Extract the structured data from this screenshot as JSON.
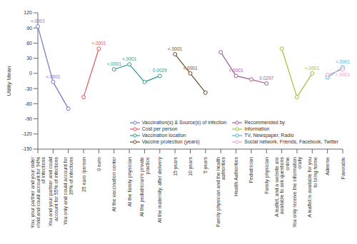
{
  "chart_data": {
    "type": "line",
    "y_label": "Utility Mean",
    "categories": [
      "You, your partner and your older child and could account for 94% of infections",
      "You and your partner and could account for 55% of infections",
      "You only and could account for 39% of infections",
      "25 euro /person",
      "0 euro",
      "At the vaccination center",
      "At the family physician",
      "At the pediatrician's private practice",
      "At the maternity, after delivery",
      "15 years",
      "10 years",
      "5 years",
      "Family physician and the health authorities",
      "Health Authorities",
      "Pediatrician",
      "Family physician",
      "A leaflet, and a website are available to ask questions online",
      "You only receive the information orally",
      "A leaflet is available for you to bring home",
      "Adverse",
      "Favorable"
    ],
    "ylim": [
      -150,
      120
    ],
    "yticks": [
      -150,
      -120,
      -90,
      -60,
      -30,
      0,
      30,
      60,
      90,
      120
    ],
    "legend": "lower right",
    "marker": "circle",
    "series": [
      {
        "name": "Vaccination(s) & Source(s) of infection",
        "color": "#7777cc",
        "values": [
          93,
          -17,
          -70,
          null,
          null,
          null,
          null,
          null,
          null,
          null,
          null,
          null,
          null,
          null,
          null,
          null,
          null,
          null,
          null,
          null,
          null
        ],
        "p_values": [
          "<.0001",
          "<.0001",
          null,
          null,
          null,
          null,
          null,
          null,
          null,
          null,
          null,
          null,
          null,
          null,
          null,
          null,
          null,
          null,
          null,
          null,
          null
        ]
      },
      {
        "name": "Cost per person",
        "color": "#e15759",
        "values": [
          null,
          null,
          null,
          -47,
          49,
          null,
          null,
          null,
          null,
          null,
          null,
          null,
          null,
          null,
          null,
          null,
          null,
          null,
          null,
          null,
          null
        ],
        "p_values": [
          null,
          null,
          null,
          null,
          "<.0001",
          null,
          null,
          null,
          null,
          null,
          null,
          null,
          null,
          null,
          null,
          null,
          null,
          null,
          null,
          null,
          null
        ]
      },
      {
        "name": "Vaccination location",
        "color": "#2e9a8a",
        "values": [
          null,
          null,
          null,
          null,
          null,
          8,
          18,
          -17,
          -5,
          null,
          null,
          null,
          null,
          null,
          null,
          null,
          null,
          null,
          null,
          null,
          null
        ],
        "p_values": [
          null,
          null,
          null,
          null,
          null,
          "<.0001",
          "<.0001",
          null,
          "0.0029",
          null,
          null,
          null,
          null,
          null,
          null,
          null,
          null,
          null,
          null,
          null,
          null
        ]
      },
      {
        "name": "Vaccine protection (years)",
        "color": "#6b4a2e",
        "values": [
          null,
          null,
          null,
          null,
          null,
          null,
          null,
          null,
          null,
          38,
          0,
          -38,
          null,
          null,
          null,
          null,
          null,
          null,
          null,
          null,
          null
        ],
        "p_values": [
          null,
          null,
          null,
          null,
          null,
          null,
          null,
          null,
          null,
          "<.0001",
          "<.0001",
          null,
          null,
          null,
          null,
          null,
          null,
          null,
          null,
          null,
          null
        ]
      },
      {
        "name": "Recommended by",
        "color": "#a35aa3",
        "values": [
          null,
          null,
          null,
          null,
          null,
          null,
          null,
          null,
          null,
          null,
          null,
          null,
          42,
          -5,
          -12,
          -20,
          null,
          null,
          null,
          null,
          null
        ],
        "p_values": [
          null,
          null,
          null,
          null,
          null,
          null,
          null,
          null,
          null,
          null,
          null,
          null,
          null,
          "<.0001",
          null,
          "0.0297",
          null,
          null,
          null,
          null,
          null
        ]
      },
      {
        "name": "Information",
        "color": "#9dc23a",
        "values": [
          null,
          null,
          null,
          null,
          null,
          null,
          null,
          null,
          null,
          null,
          null,
          null,
          null,
          null,
          null,
          null,
          49,
          -47,
          0,
          null,
          null
        ],
        "p_values": [
          null,
          null,
          null,
          null,
          null,
          null,
          null,
          null,
          null,
          null,
          null,
          null,
          null,
          null,
          null,
          null,
          null,
          null,
          "<.0001",
          null,
          null
        ]
      },
      {
        "name": "TV, Newspaper, Radio",
        "color": "#4fb3de",
        "values": [
          null,
          null,
          null,
          null,
          null,
          null,
          null,
          null,
          null,
          null,
          null,
          null,
          null,
          null,
          null,
          null,
          null,
          null,
          null,
          -8,
          12
        ],
        "p_values": [
          null,
          null,
          null,
          null,
          null,
          null,
          null,
          null,
          null,
          null,
          null,
          null,
          null,
          null,
          null,
          null,
          null,
          null,
          null,
          null,
          "<.0001"
        ]
      },
      {
        "name": "Social network, Friends, Facebook, Twitter",
        "color": "#e8a0c8",
        "values": [
          null,
          null,
          null,
          null,
          null,
          null,
          null,
          null,
          null,
          null,
          null,
          null,
          null,
          null,
          null,
          null,
          null,
          null,
          null,
          -3,
          8
        ],
        "p_values": [
          null,
          null,
          null,
          null,
          null,
          null,
          null,
          null,
          null,
          null,
          null,
          null,
          null,
          null,
          null,
          null,
          null,
          null,
          null,
          null,
          "<.0001"
        ]
      }
    ]
  }
}
